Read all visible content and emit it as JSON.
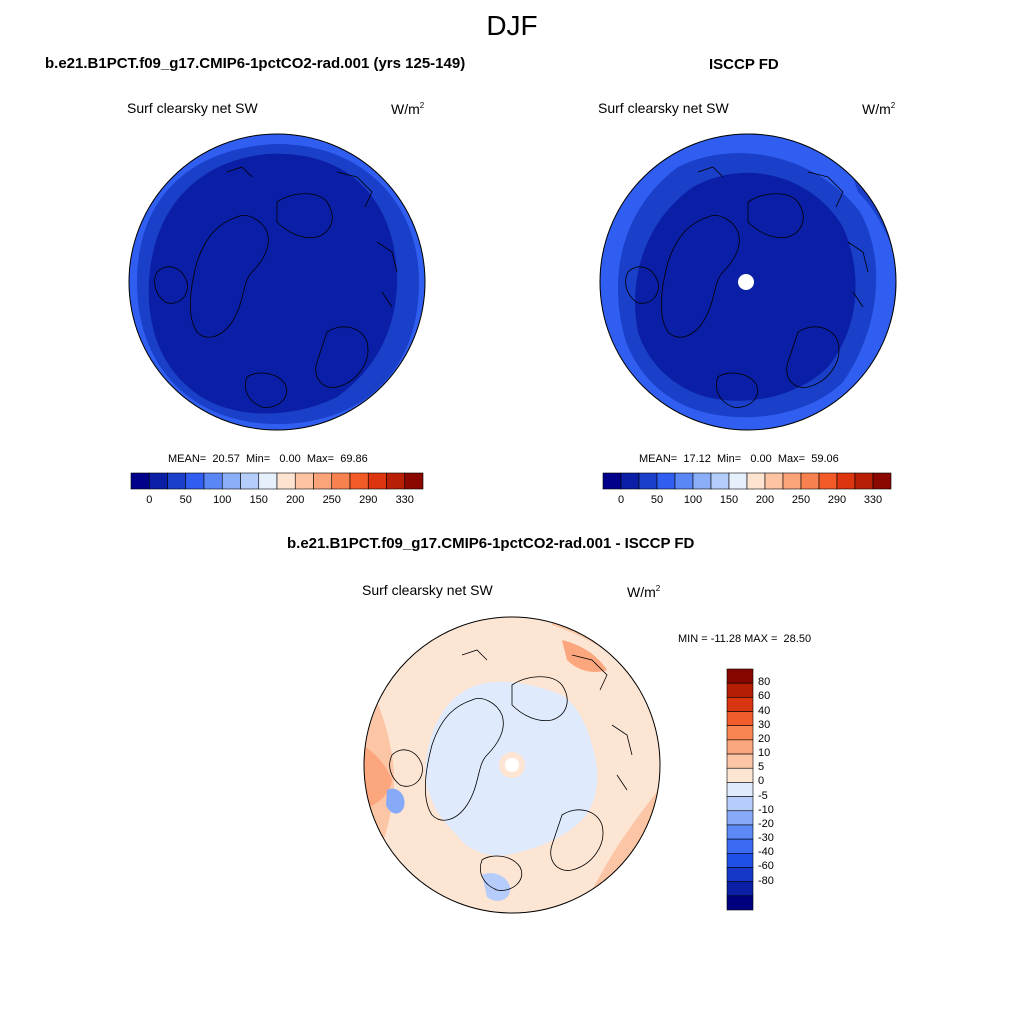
{
  "season": "DJF",
  "variable": "Surf clearsky net SW",
  "units": "W/m",
  "units_exponent": "2",
  "colors": {
    "land_outline": "#000000",
    "abs_palette": [
      "#00008b",
      "#0a1fa5",
      "#1a3fc8",
      "#2f5ef0",
      "#5b86f5",
      "#8aaef8",
      "#b5cdfb",
      "#e6f0fd",
      "#fde3d0",
      "#fcc4a3",
      "#fba47a",
      "#f8824f",
      "#f25a28",
      "#dd3510",
      "#b81f04",
      "#8a0800"
    ],
    "diff_palette": [
      "#00007f",
      "#0a1fa5",
      "#1638c8",
      "#1e4fe6",
      "#3a6bf2",
      "#5c89f6",
      "#86aaf8",
      "#b6cdfb",
      "#dfeafd",
      "#fde5d3",
      "#fcc6a6",
      "#fba67c",
      "#f88552",
      "#f15c2b",
      "#d83511",
      "#b41e04",
      "#850700"
    ]
  },
  "panels": [
    {
      "title": "b.e21.B1PCT.f09_g17.CMIP6-1pctCO2-rad.001 (yrs 125-149)",
      "mean_label": "MEAN=",
      "mean": "20.57",
      "min_label": "Min=",
      "min": "0.00",
      "max_label": "Max=",
      "max": "69.86"
    },
    {
      "title": "ISCCP FD",
      "mean_label": "MEAN=",
      "mean": "17.12",
      "min_label": "Min=",
      "min": "0.00",
      "max_label": "Max=",
      "max": "59.06"
    }
  ],
  "abs_colorbar_labels": [
    "0",
    "50",
    "100",
    "150",
    "200",
    "250",
    "290",
    "330"
  ],
  "diff": {
    "title": "b.e21.B1PCT.f09_g17.CMIP6-1pctCO2-rad.001 - ISCCP FD",
    "stats": "MIN = -11.28 MAX =  28.50",
    "colorbar_labels": [
      "80",
      "60",
      "40",
      "30",
      "20",
      "10",
      "5",
      "0",
      "-5",
      "-10",
      "-20",
      "-30",
      "-40",
      "-60",
      "-80"
    ]
  }
}
